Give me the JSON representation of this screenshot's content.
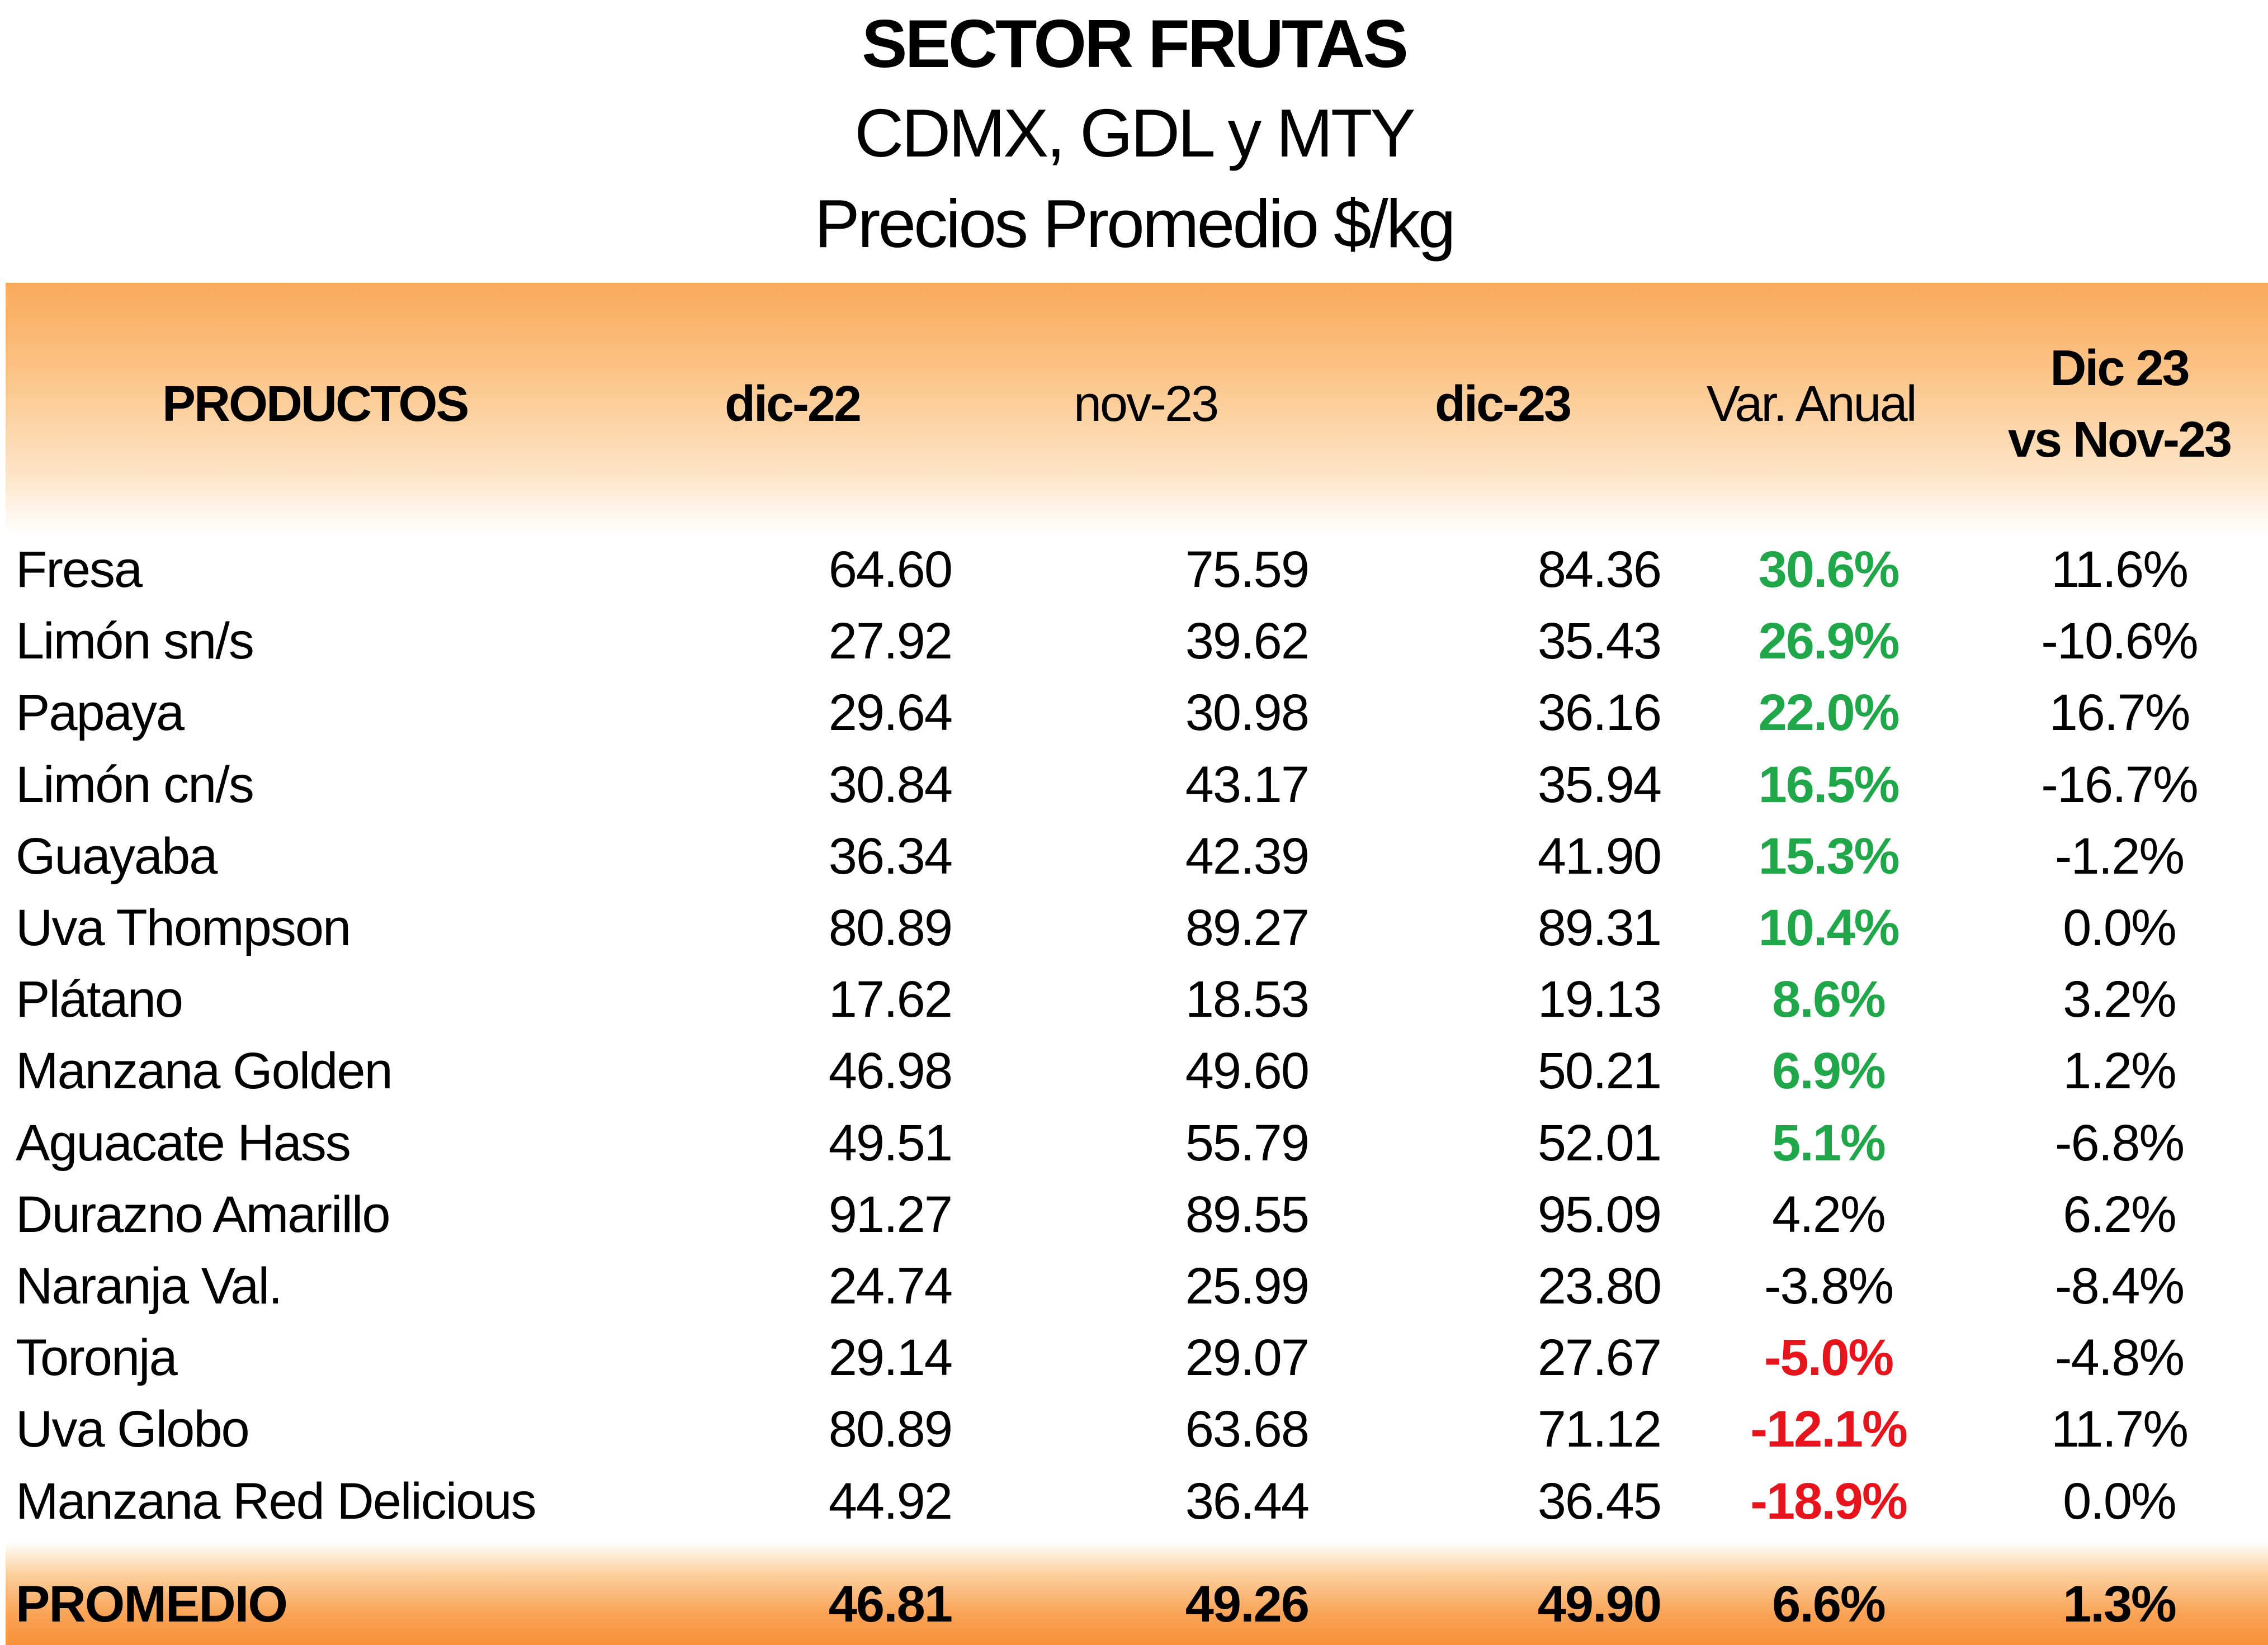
{
  "title": "SECTOR FRUTAS",
  "subtitle": "CDMX, GDL y MTY",
  "subtitle2": "Precios Promedio $/kg",
  "colors": {
    "band_orange": "#f7913a",
    "positive_green": "#1fa74a",
    "negative_red": "#e8141c"
  },
  "headers": {
    "productos": "PRODUCTOS",
    "dic22": "dic-22",
    "nov23": "nov-23",
    "dic23": "dic-23",
    "var_anual": "Var. Anual",
    "dic23_vs_line1": "Dic 23",
    "dic23_vs_line2": "vs Nov-23"
  },
  "rows": [
    {
      "producto": "Fresa",
      "dic22": "64.60",
      "nov23": "75.59",
      "dic23": "84.36",
      "var_anual": "30.6%",
      "var_color": "green",
      "vs_nov": "11.6%"
    },
    {
      "producto": "Limón sn/s",
      "dic22": "27.92",
      "nov23": "39.62",
      "dic23": "35.43",
      "var_anual": "26.9%",
      "var_color": "green",
      "vs_nov": "-10.6%"
    },
    {
      "producto": "Papaya",
      "dic22": "29.64",
      "nov23": "30.98",
      "dic23": "36.16",
      "var_anual": "22.0%",
      "var_color": "green",
      "vs_nov": "16.7%"
    },
    {
      "producto": "Limón cn/s",
      "dic22": "30.84",
      "nov23": "43.17",
      "dic23": "35.94",
      "var_anual": "16.5%",
      "var_color": "green",
      "vs_nov": "-16.7%"
    },
    {
      "producto": "Guayaba",
      "dic22": "36.34",
      "nov23": "42.39",
      "dic23": "41.90",
      "var_anual": "15.3%",
      "var_color": "green",
      "vs_nov": "-1.2%"
    },
    {
      "producto": "Uva Thompson",
      "dic22": "80.89",
      "nov23": "89.27",
      "dic23": "89.31",
      "var_anual": "10.4%",
      "var_color": "green",
      "vs_nov": "0.0%"
    },
    {
      "producto": "Plátano",
      "dic22": "17.62",
      "nov23": "18.53",
      "dic23": "19.13",
      "var_anual": "8.6%",
      "var_color": "green",
      "vs_nov": "3.2%"
    },
    {
      "producto": "Manzana Golden",
      "dic22": "46.98",
      "nov23": "49.60",
      "dic23": "50.21",
      "var_anual": "6.9%",
      "var_color": "green",
      "vs_nov": "1.2%"
    },
    {
      "producto": "Aguacate Hass",
      "dic22": "49.51",
      "nov23": "55.79",
      "dic23": "52.01",
      "var_anual": "5.1%",
      "var_color": "green",
      "vs_nov": "-6.8%"
    },
    {
      "producto": "Durazno Amarillo",
      "dic22": "91.27",
      "nov23": "89.55",
      "dic23": "95.09",
      "var_anual": "4.2%",
      "var_color": "plain",
      "vs_nov": "6.2%"
    },
    {
      "producto": "Naranja Val.",
      "dic22": "24.74",
      "nov23": "25.99",
      "dic23": "23.80",
      "var_anual": "-3.8%",
      "var_color": "plain",
      "vs_nov": "-8.4%"
    },
    {
      "producto": "Toronja",
      "dic22": "29.14",
      "nov23": "29.07",
      "dic23": "27.67",
      "var_anual": "-5.0%",
      "var_color": "red",
      "vs_nov": "-4.8%"
    },
    {
      "producto": "Uva Globo",
      "dic22": "80.89",
      "nov23": "63.68",
      "dic23": "71.12",
      "var_anual": "-12.1%",
      "var_color": "red",
      "vs_nov": "11.7%"
    },
    {
      "producto": "Manzana Red Delicious",
      "dic22": "44.92",
      "nov23": "36.44",
      "dic23": "36.45",
      "var_anual": "-18.9%",
      "var_color": "red",
      "vs_nov": "0.0%"
    }
  ],
  "promedio": {
    "label": "PROMEDIO",
    "dic22": "46.81",
    "nov23": "49.26",
    "dic23": "49.90",
    "var_anual": "6.6%",
    "vs_nov": "1.3%"
  }
}
